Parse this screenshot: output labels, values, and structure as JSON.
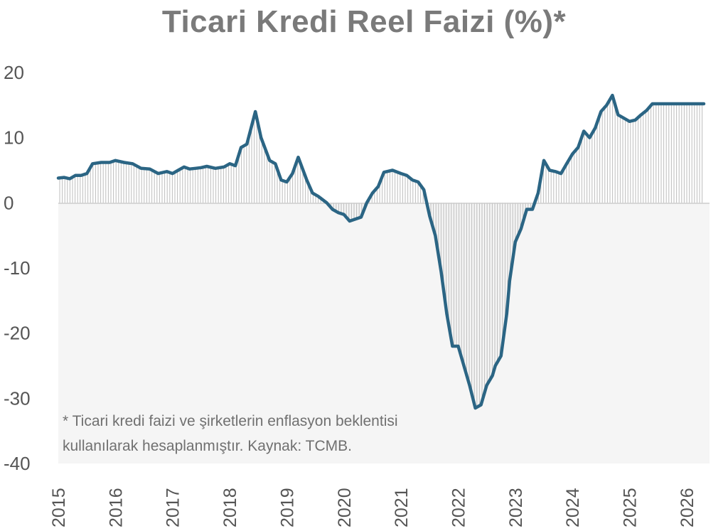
{
  "chart_data": {
    "type": "area",
    "title": "Ticari Kredi Reel Faizi (%)*",
    "xlabel": "",
    "ylabel": "",
    "ylim": [
      -40,
      20
    ],
    "yticks": [
      "20",
      "10",
      "0",
      "-10",
      "-20",
      "-30",
      "-40"
    ],
    "xticks": [
      "2015",
      "2016",
      "2017",
      "2018",
      "2019",
      "2020",
      "2021",
      "2022",
      "2023",
      "2024",
      "2025",
      "2026"
    ],
    "xlim": [
      2015.0,
      2026.4
    ],
    "grid": false,
    "note": [
      "* Ticari kredi faizi ve şirketlerin enflasyon beklentisi",
      "kullanılarak hesaplanmıştır. Kaynak: TCMB."
    ],
    "colors": {
      "line": "#2b6584",
      "fill_lines": "#bdbdbd",
      "zero_line": "#cccccc",
      "title": "#7a7a7a"
    },
    "series": [
      {
        "x": [
          2015.0,
          2015.1,
          2015.2,
          2015.3,
          2015.4,
          2015.5,
          2015.6,
          2015.75,
          2015.9,
          2016.0,
          2016.15,
          2016.3,
          2016.45,
          2016.6,
          2016.75,
          2016.9,
          2017.0,
          2017.1,
          2017.2,
          2017.3,
          2017.4,
          2017.5,
          2017.6,
          2017.75,
          2017.9,
          2018.0,
          2018.1,
          2018.2,
          2018.3,
          2018.45,
          2018.55,
          2018.7,
          2018.8,
          2018.9,
          2019.0,
          2019.1,
          2019.2,
          2019.35,
          2019.45,
          2019.55,
          2019.7,
          2019.8,
          2019.9,
          2020.0,
          2020.1,
          2020.2,
          2020.3,
          2020.4,
          2020.5,
          2020.6,
          2020.7,
          2020.85,
          2021.0,
          2021.1,
          2021.2,
          2021.3,
          2021.4,
          2021.5,
          2021.6,
          2021.7,
          2021.8,
          2021.9,
          2022.0,
          2022.1,
          2022.2,
          2022.3,
          2022.4,
          2022.5,
          2022.6,
          2022.65,
          2022.75,
          2022.85,
          2022.9,
          2023.0,
          2023.1,
          2023.2,
          2023.3,
          2023.4,
          2023.5,
          2023.6,
          2023.7,
          2023.8,
          2023.9,
          2024.0,
          2024.1,
          2024.2,
          2024.3,
          2024.4,
          2024.5,
          2024.6,
          2024.7,
          2024.8,
          2024.9,
          2025.0,
          2025.1,
          2025.2,
          2025.3,
          2025.4,
          2025.5,
          2025.6,
          2025.7,
          2025.8,
          2025.9,
          2026.0,
          2026.1,
          2026.2,
          2026.3
        ],
        "values": [
          3.8,
          3.9,
          3.7,
          4.2,
          4.2,
          4.5,
          6.0,
          6.2,
          6.2,
          6.5,
          6.2,
          6.0,
          5.3,
          5.2,
          4.5,
          4.8,
          4.5,
          5.0,
          5.5,
          5.2,
          5.3,
          5.4,
          5.6,
          5.3,
          5.5,
          6.0,
          5.7,
          8.5,
          9.0,
          14.0,
          10.0,
          6.5,
          6.0,
          3.5,
          3.2,
          4.5,
          7.0,
          3.5,
          1.5,
          1.0,
          0.0,
          -1.0,
          -1.5,
          -1.8,
          -2.8,
          -2.5,
          -2.2,
          0.0,
          1.5,
          2.5,
          4.7,
          5.0,
          4.5,
          4.2,
          3.5,
          3.2,
          2.0,
          -2.0,
          -5.0,
          -10.5,
          -17.0,
          -22.0,
          -22.0,
          -25.0,
          -28.0,
          -31.5,
          -31.0,
          -28.0,
          -26.5,
          -25.0,
          -23.5,
          -17.0,
          -12.0,
          -6.0,
          -4.0,
          -1.0,
          -1.0,
          1.5,
          6.5,
          5.0,
          4.8,
          4.5,
          6.0,
          7.5,
          8.5,
          11.0,
          10.0,
          11.5,
          14.0,
          15.0,
          16.5,
          13.5,
          13.0,
          12.5,
          12.7,
          13.5,
          14.2,
          15.2,
          15.2,
          15.2,
          15.2,
          15.2,
          15.2,
          15.2,
          15.2,
          15.2,
          15.2
        ]
      }
    ]
  }
}
